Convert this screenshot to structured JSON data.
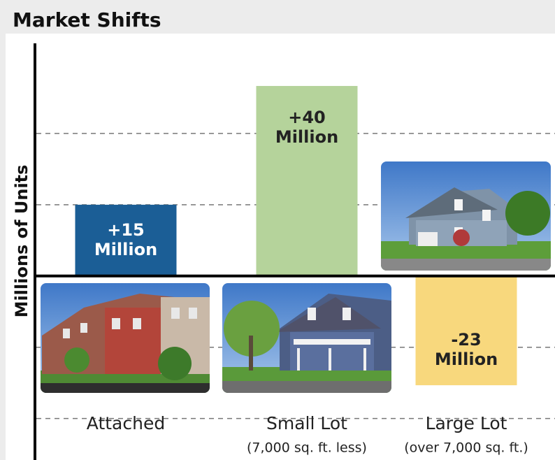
{
  "chart_data": {
    "type": "bar",
    "title": "Market Shifts",
    "y_label": "Millions of Units",
    "categories": [
      "Attached",
      "Small Lot",
      "Large Lot"
    ],
    "subcategories": [
      null,
      "(7,000 sq. ft. less)",
      "(over 7,000 sq. ft.)"
    ],
    "values": [
      15,
      40,
      -23
    ],
    "value_labels": [
      "+15 Million",
      "+40 Million",
      "-23 Million"
    ],
    "colors": [
      "#1b5e96",
      "#b5d39b",
      "#f8d87d"
    ],
    "label_colors": [
      "#ffffff",
      "#222222",
      "#222222"
    ],
    "ylim": [
      -38,
      50
    ],
    "yticks": [
      -30,
      -15,
      15,
      30
    ],
    "grid": true
  }
}
